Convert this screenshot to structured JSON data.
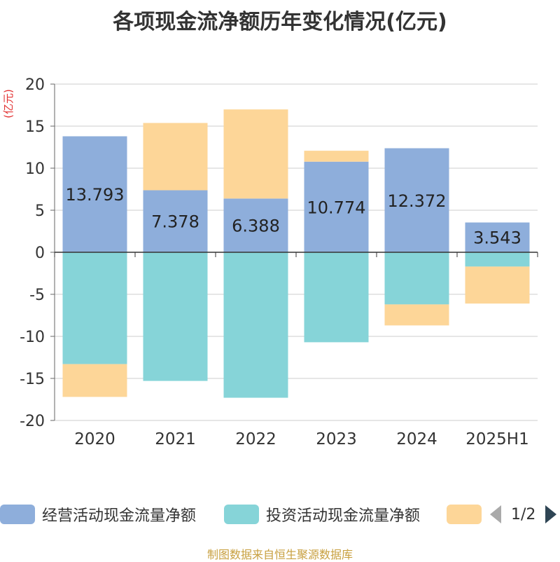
{
  "chart_data": {
    "type": "bar",
    "stacked": true,
    "title": "各项现金流净额历年变化情况(亿元)",
    "unit_label": "(亿元)",
    "categories": [
      "2020",
      "2021",
      "2022",
      "2023",
      "2024",
      "2025H1"
    ],
    "ylim": [
      -20,
      20
    ],
    "yticks": [
      20,
      15,
      10,
      5,
      0,
      -5,
      -10,
      -15,
      -20
    ],
    "grid": true,
    "legend_position": "bottom",
    "series": [
      {
        "name": "经营活动现金流量净额",
        "color": "#8eaedb",
        "values": [
          13.793,
          7.378,
          6.388,
          10.774,
          12.372,
          3.543
        ],
        "data_labels": [
          "13.793",
          "7.378",
          "6.388",
          "10.774",
          "12.372",
          "3.543"
        ]
      },
      {
        "name": "投资活动现金流量净额",
        "color": "#86d4d8",
        "values": [
          -13.3,
          -15.3,
          -17.3,
          -10.7,
          -6.2,
          -1.7
        ]
      },
      {
        "name": "",
        "color": "#fdd698",
        "values": [
          -3.9,
          8.0,
          10.6,
          1.3,
          -2.5,
          -4.4
        ]
      }
    ]
  },
  "legend": {
    "items": [
      "经营活动现金流量净额",
      "投资活动现金流量净额",
      ""
    ],
    "page_indicator": "1/2"
  },
  "source_note": "制图数据来自恒生聚源数据库"
}
